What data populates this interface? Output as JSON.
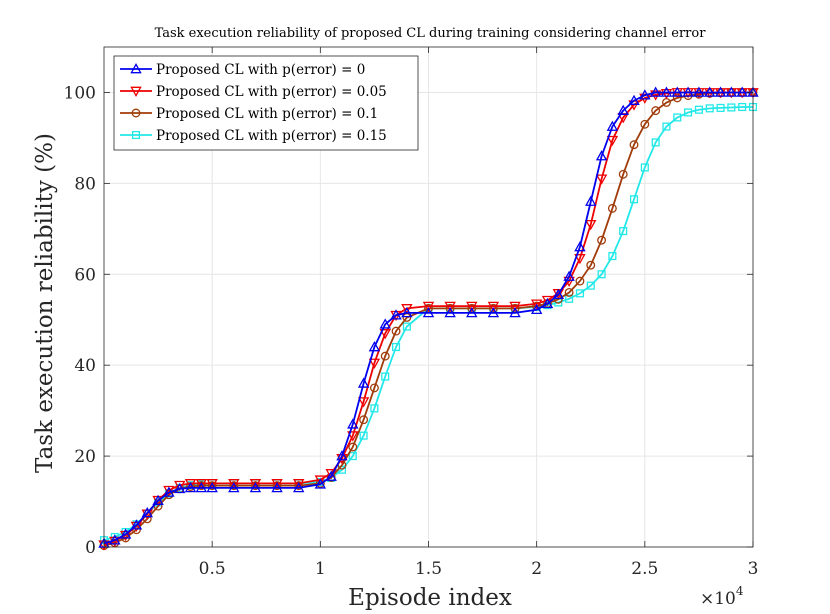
{
  "chart_data": {
    "type": "line",
    "title": "Task execution reliability of proposed CL during training considering channel error",
    "xlabel": "Episode index",
    "ylabel": "Task execution reliability (%)",
    "x_multiplier_label": "×10",
    "x_multiplier_exponent": "4",
    "xlim": [
      0,
      30000
    ],
    "ylim": [
      0,
      110
    ],
    "xticks": [
      5000,
      10000,
      15000,
      20000,
      25000,
      30000
    ],
    "xtick_labels": [
      "0.5",
      "1",
      "1.5",
      "2",
      "2.5",
      "3"
    ],
    "yticks": [
      0,
      20,
      40,
      60,
      80,
      100
    ],
    "ytick_labels": [
      "0",
      "20",
      "40",
      "60",
      "80",
      "100"
    ],
    "grid": true,
    "legend_position": "top-left",
    "x": [
      0,
      500,
      1000,
      1500,
      2000,
      2500,
      3000,
      3500,
      4000,
      4500,
      5000,
      6000,
      7000,
      8000,
      9000,
      10000,
      10500,
      11000,
      11500,
      12000,
      12500,
      13000,
      13500,
      14000,
      15000,
      16000,
      17000,
      18000,
      19000,
      20000,
      20500,
      21000,
      21500,
      22000,
      22500,
      23000,
      23500,
      24000,
      24500,
      25000,
      25500,
      26000,
      26500,
      27000,
      27500,
      28000,
      28500,
      29000,
      29500,
      30000
    ],
    "series": [
      {
        "name": "Proposed CL with p(error) = 0",
        "color": "#0000ee",
        "marker": "triangle-up",
        "values": [
          0.8,
          1.5,
          2.8,
          4.8,
          7.5,
          10.2,
          12.0,
          12.8,
          13.0,
          13.0,
          13.0,
          13.0,
          13.0,
          13.0,
          13.0,
          13.8,
          15.5,
          20.0,
          27.0,
          36.0,
          44.0,
          49.0,
          51.0,
          51.5,
          51.5,
          51.5,
          51.5,
          51.5,
          51.5,
          52.2,
          53.5,
          55.5,
          59.5,
          66.0,
          76.0,
          86.0,
          92.5,
          96.0,
          98.2,
          99.4,
          100,
          100,
          100,
          100,
          100,
          100,
          100,
          100,
          100,
          100
        ]
      },
      {
        "name": "Proposed CL with p(error) = 0.05",
        "color": "#ee0000",
        "marker": "triangle-down",
        "values": [
          0.5,
          1.3,
          2.6,
          4.6,
          7.3,
          10.3,
          12.5,
          13.6,
          14.0,
          14.0,
          14.0,
          14.0,
          14.0,
          14.0,
          14.0,
          14.8,
          16.2,
          19.5,
          24.5,
          32.0,
          40.5,
          47.0,
          51.0,
          52.5,
          53.0,
          53.0,
          53.0,
          53.0,
          53.0,
          53.5,
          54.3,
          55.8,
          58.5,
          63.5,
          71.0,
          81.0,
          89.5,
          94.5,
          97.3,
          98.8,
          99.5,
          99.8,
          100,
          100,
          100,
          100,
          100,
          100,
          100,
          100
        ]
      },
      {
        "name": "Proposed CL with p(error) = 0.1",
        "color": "#a03c0a",
        "marker": "circle",
        "values": [
          0.3,
          0.9,
          2.0,
          3.8,
          6.2,
          9.0,
          11.5,
          12.8,
          13.3,
          13.5,
          13.5,
          13.5,
          13.5,
          13.5,
          13.5,
          14.0,
          15.3,
          18.0,
          22.0,
          28.0,
          35.0,
          42.0,
          47.5,
          50.5,
          52.5,
          52.5,
          52.5,
          52.5,
          52.5,
          53.0,
          53.6,
          54.5,
          56.0,
          58.5,
          62.0,
          67.5,
          74.5,
          82.0,
          88.5,
          93.0,
          96.0,
          97.8,
          98.8,
          99.3,
          99.6,
          99.8,
          99.9,
          100,
          100,
          100
        ]
      },
      {
        "name": "Proposed CL with p(error) = 0.15",
        "color": "#22e8e8",
        "marker": "square",
        "values": [
          1.5,
          2.2,
          3.3,
          5.0,
          7.3,
          9.8,
          11.8,
          13.0,
          13.6,
          13.8,
          14.0,
          14.0,
          14.0,
          14.0,
          14.0,
          14.3,
          15.2,
          17.0,
          20.0,
          24.5,
          30.5,
          37.5,
          44.0,
          48.5,
          52.5,
          52.5,
          52.5,
          52.5,
          52.5,
          52.8,
          53.2,
          53.8,
          54.6,
          55.8,
          57.5,
          60.0,
          64.0,
          69.5,
          76.5,
          83.5,
          89.0,
          92.5,
          94.5,
          95.6,
          96.2,
          96.5,
          96.6,
          96.7,
          96.8,
          96.8
        ]
      }
    ]
  }
}
